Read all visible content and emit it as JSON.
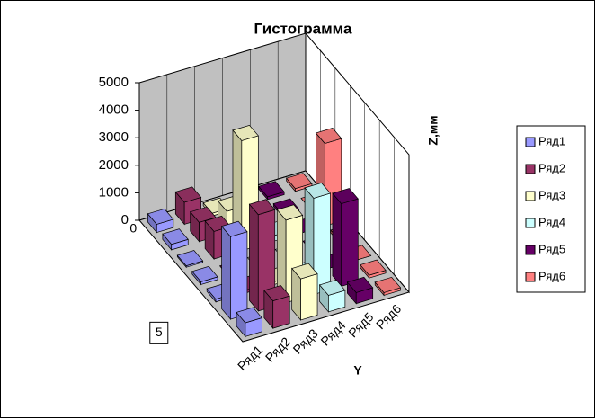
{
  "chart_data": {
    "type": "bar3d",
    "title": "Гистограмма",
    "zlabel": "Z,мм",
    "ylabel": "Y",
    "categories": [
      "0",
      null,
      null,
      null,
      null,
      null,
      "5"
    ],
    "series": [
      {
        "name": "Ряд1",
        "color": "#9999ff",
        "values": [
          300,
          200,
          50,
          100,
          100,
          3000,
          500
        ]
      },
      {
        "name": "Ряд2",
        "color": "#993366",
        "values": [
          800,
          700,
          1000,
          0,
          100,
          3500,
          1000
        ]
      },
      {
        "name": "Ряд3",
        "color": "#ffffcc",
        "values": [
          100,
          800,
          4000,
          0,
          100,
          3000,
          1500
        ]
      },
      {
        "name": "Ряд4",
        "color": "#ccffff",
        "values": [
          0,
          0,
          200,
          0,
          0,
          3500,
          600
        ]
      },
      {
        "name": "Ряд5",
        "color": "#660066",
        "values": [
          100,
          100,
          0,
          0,
          0,
          3000,
          400
        ]
      },
      {
        "name": "Ряд6",
        "color": "#ff8080",
        "values": [
          100,
          0,
          3000,
          100,
          0,
          100,
          100
        ]
      }
    ],
    "zlim": [
      0,
      5000
    ],
    "zticks": [
      0,
      1000,
      2000,
      3000,
      4000,
      5000
    ]
  }
}
